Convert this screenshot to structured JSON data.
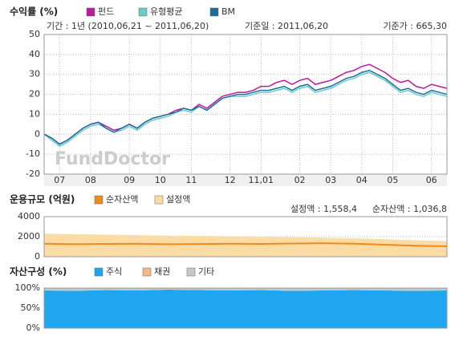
{
  "chart_data": [
    {
      "type": "line",
      "title": "수익률 (%)",
      "annotations": [
        "기간 : 1년 (2010,06,21 ~ 2011,06,20)",
        "기준일 : 2011,06,20",
        "기준가 : 665,30"
      ],
      "watermark": "FundDoctor",
      "categories": [
        null,
        null,
        "07",
        null,
        null,
        null,
        "08",
        null,
        null,
        null,
        null,
        "09",
        null,
        null,
        null,
        "10",
        null,
        null,
        null,
        "11",
        null,
        null,
        null,
        null,
        "12",
        null,
        null,
        null,
        "11,01",
        null,
        null,
        null,
        null,
        "02",
        null,
        null,
        null,
        "03",
        null,
        null,
        null,
        "04",
        null,
        null,
        null,
        "05",
        null,
        null,
        null,
        null,
        "06",
        null,
        null
      ],
      "series": [
        {
          "name": "펀드",
          "color": "#c0189c",
          "values": [
            0,
            -2,
            -5,
            -3,
            0,
            3,
            5,
            6,
            4,
            2,
            3,
            5,
            3,
            6,
            8,
            9,
            10,
            12,
            13,
            12,
            15,
            13,
            16,
            19,
            20,
            21,
            21,
            22,
            24,
            24,
            26,
            27,
            25,
            27,
            28,
            25,
            26,
            27,
            29,
            31,
            32,
            34,
            35,
            33,
            31,
            28,
            26,
            27,
            24,
            23,
            25,
            24,
            23
          ]
        },
        {
          "name": "유형평균",
          "color": "#66cccc",
          "values": [
            0,
            -3,
            -6,
            -4,
            -1,
            2,
            4,
            5,
            3,
            1,
            2,
            4,
            2,
            5,
            7,
            8,
            9,
            11,
            12,
            11,
            14,
            12,
            15,
            18,
            19,
            19,
            19,
            20,
            21,
            21,
            22,
            23,
            21,
            23,
            24,
            21,
            22,
            23,
            25,
            27,
            28,
            30,
            31,
            29,
            27,
            24,
            21,
            22,
            20,
            19,
            21,
            20,
            19
          ]
        },
        {
          "name": "BM",
          "color": "#1a6fa0",
          "values": [
            0,
            -2,
            -5,
            -3,
            0,
            3,
            5,
            6,
            3,
            1,
            3,
            5,
            3,
            6,
            8,
            9,
            10,
            11,
            13,
            12,
            14,
            12,
            15,
            18,
            19,
            20,
            20,
            21,
            22,
            22,
            23,
            24,
            22,
            24,
            25,
            22,
            23,
            24,
            26,
            28,
            29,
            31,
            32,
            30,
            28,
            25,
            22,
            23,
            21,
            20,
            22,
            21,
            20
          ]
        }
      ],
      "ylim": [
        -20,
        50
      ],
      "yticks": [
        -20,
        -10,
        0,
        10,
        20,
        30,
        40,
        50
      ],
      "grid": true
    },
    {
      "type": "area",
      "title": "운용규모 (억원)",
      "annotations": [
        "설정액 : 1,558,4",
        "순자산액 : 1,036,8"
      ],
      "series": [
        {
          "name": "순자산액",
          "color": "#f08a1c",
          "area": false,
          "values": [
            1300,
            1250,
            1280,
            1300,
            1250,
            1270,
            1300,
            1280,
            1320,
            1350,
            1300,
            1200,
            1100,
            1037
          ]
        },
        {
          "name": "설정액",
          "color": "#fadca4",
          "area": true,
          "values": [
            2300,
            2250,
            2200,
            2150,
            2100,
            2080,
            2050,
            2000,
            1950,
            1900,
            1850,
            1750,
            1650,
            1558
          ]
        }
      ],
      "ylim": [
        0,
        4000
      ],
      "yticks": [
        0,
        2000,
        4000
      ],
      "grid": true
    },
    {
      "type": "stacked_area",
      "title": "자산구성 (%)",
      "series": [
        {
          "name": "주식",
          "color": "#1ea7f0",
          "values": [
            94,
            93,
            95,
            94,
            96,
            95,
            94,
            95,
            93,
            94,
            95,
            94,
            93,
            94
          ]
        },
        {
          "name": "채권",
          "color": "#f4b880",
          "values": [
            0,
            0,
            0,
            0,
            0,
            0,
            0,
            0,
            0,
            0,
            0,
            0,
            0,
            0
          ]
        },
        {
          "name": "기타",
          "color": "#c8c8c8",
          "values": [
            6,
            7,
            5,
            6,
            4,
            5,
            6,
            5,
            7,
            6,
            5,
            6,
            7,
            6
          ]
        }
      ],
      "ylim": [
        0,
        100
      ],
      "yticks": [
        {
          "value": 0,
          "label": "0%"
        },
        {
          "value": 50,
          "label": "50%"
        },
        {
          "value": 100,
          "label": "100%"
        }
      ],
      "grid": true
    }
  ]
}
